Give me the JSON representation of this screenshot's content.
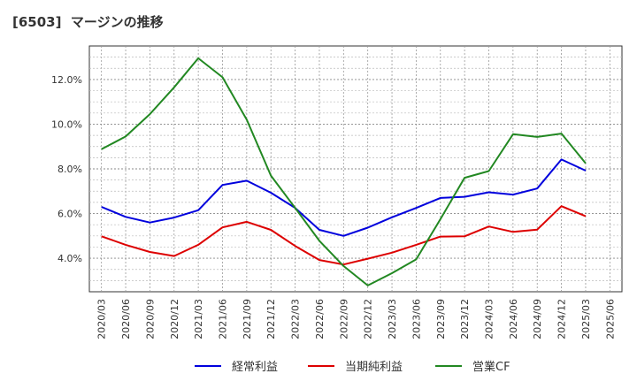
{
  "title": "[6503]  マージンの推移",
  "chart_data": {
    "type": "line",
    "x": [
      "2020/03",
      "2020/06",
      "2020/09",
      "2020/12",
      "2021/03",
      "2021/06",
      "2021/09",
      "2021/12",
      "2022/03",
      "2022/06",
      "2022/09",
      "2022/12",
      "2023/03",
      "2023/06",
      "2023/09",
      "2023/12",
      "2024/03",
      "2024/06",
      "2024/09",
      "2024/12",
      "2025/03",
      "2025/06"
    ],
    "ylim": [
      2.5,
      13.5
    ],
    "yticks": [
      4.0,
      6.0,
      8.0,
      10.0,
      12.0
    ],
    "ytick_labels": [
      "4.0%",
      "6.0%",
      "8.0%",
      "10.0%",
      "12.0%"
    ],
    "grid": true,
    "legend_position": "bottom",
    "series": [
      {
        "name": "経常利益",
        "color": "#0000dd",
        "values": [
          6.3,
          5.85,
          5.6,
          5.82,
          6.15,
          7.28,
          7.47,
          6.93,
          6.25,
          5.27,
          5.0,
          5.37,
          5.83,
          6.25,
          6.7,
          6.75,
          6.95,
          6.85,
          7.12,
          8.42,
          7.92,
          null
        ]
      },
      {
        "name": "当期純利益",
        "color": "#dd0000",
        "values": [
          4.98,
          4.6,
          4.28,
          4.1,
          4.6,
          5.38,
          5.63,
          5.27,
          4.55,
          3.92,
          3.72,
          3.98,
          4.25,
          4.6,
          4.97,
          4.98,
          5.42,
          5.18,
          5.28,
          6.33,
          5.88,
          null
        ]
      },
      {
        "name": "営業CF",
        "color": "#228822",
        "values": [
          8.88,
          9.45,
          10.45,
          11.65,
          12.95,
          12.1,
          10.2,
          7.7,
          6.25,
          4.78,
          3.65,
          2.78,
          3.33,
          3.95,
          5.75,
          7.6,
          7.9,
          9.55,
          9.43,
          9.58,
          8.25,
          null
        ]
      }
    ]
  }
}
